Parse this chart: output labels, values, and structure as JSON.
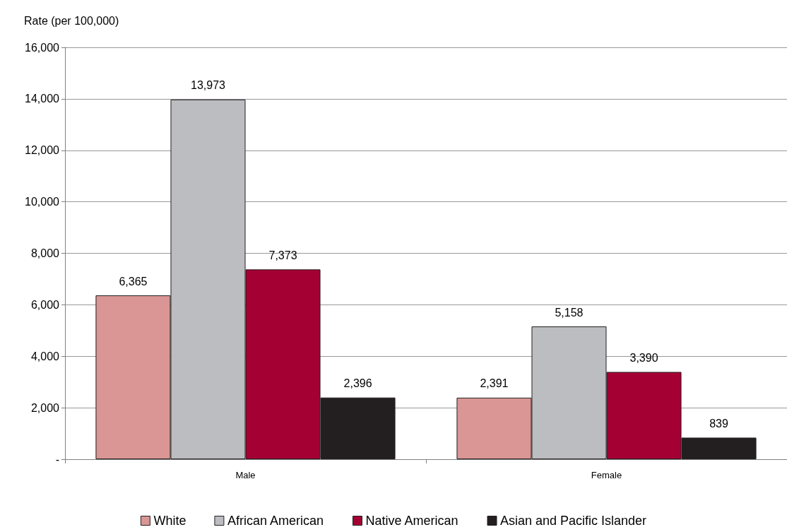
{
  "chart_data": {
    "type": "bar",
    "ylabel": "Rate (per 100,000)",
    "categories": [
      "Male",
      "Female"
    ],
    "series": [
      {
        "name": "White",
        "color": "#d99694",
        "values": [
          6365,
          2391
        ],
        "value_labels": [
          "6,365",
          "2,391"
        ]
      },
      {
        "name": "African American",
        "color": "#bcbdc1",
        "values": [
          13973,
          5158
        ],
        "value_labels": [
          "13,973",
          "5,158"
        ]
      },
      {
        "name": "Native American",
        "color": "#a50034",
        "values": [
          7373,
          3390
        ],
        "value_labels": [
          "7,373",
          "3,390"
        ]
      },
      {
        "name": "Asian and Pacific Islander",
        "color": "#231f20",
        "values": [
          2396,
          839
        ],
        "value_labels": [
          "2,396",
          "839"
        ]
      }
    ],
    "ylim": [
      0,
      16000
    ],
    "yticks": [
      {
        "value": 0,
        "label": "-"
      },
      {
        "value": 2000,
        "label": "2,000"
      },
      {
        "value": 4000,
        "label": "4,000"
      },
      {
        "value": 6000,
        "label": "6,000"
      },
      {
        "value": 8000,
        "label": "8,000"
      },
      {
        "value": 10000,
        "label": "10,000"
      },
      {
        "value": 12000,
        "label": "12,000"
      },
      {
        "value": 14000,
        "label": "14,000"
      },
      {
        "value": 16000,
        "label": "16,000"
      }
    ],
    "grid": "y",
    "legend": "bottom"
  }
}
